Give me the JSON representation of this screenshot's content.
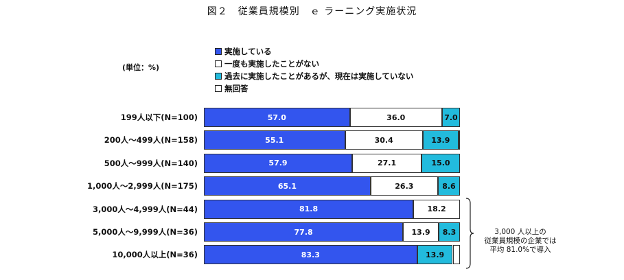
{
  "title": "図２　従業員規模別　ｅ ラーニング実施状況",
  "unit_label": "(単位：%)",
  "colors": {
    "implemented": "#3355ee",
    "once_implemented": "#ffffff",
    "past_implemented": "#22bbdd",
    "no_answer": "#ffffff"
  },
  "chart_data": {
    "type": "bar",
    "orientation": "horizontal",
    "stacked": true,
    "xlim": [
      0,
      100
    ],
    "grid": false,
    "legend_position": "top",
    "title": "図２　従業員規模別　ｅ ラーニング実施状況",
    "categories": [
      "199人以下(N=100)",
      "200人～499人(N=158)",
      "500人～999人(N=140)",
      "1,000人～2,999人(N=175)",
      "3,000人～4,999人(N=44)",
      "5,000人～9,999人(N=36)",
      "10,000人以上(N=36)"
    ],
    "series": [
      {
        "name": "実施している",
        "color": "#3355ee",
        "text_color": "#ffffff",
        "values": [
          57.0,
          55.1,
          57.9,
          65.1,
          81.8,
          77.8,
          83.3
        ]
      },
      {
        "name": "一度も実施したことがない",
        "color": "#ffffff",
        "text_color": "#111111",
        "values": [
          36.0,
          30.4,
          27.1,
          26.3,
          18.2,
          13.9,
          0
        ]
      },
      {
        "name": "過去に実施したことがあるが、現在は実施していない",
        "color": "#22bbdd",
        "text_color": "#111111",
        "values": [
          7.0,
          13.9,
          15.0,
          8.6,
          0,
          8.3,
          13.9
        ]
      },
      {
        "name": "無回答",
        "color": "#ffffff",
        "text_color": "#111111",
        "values": [
          0,
          0.6,
          0,
          0,
          0,
          0,
          2.8
        ]
      }
    ],
    "value_labels": [
      [
        "57.0",
        "36.0",
        "7.0",
        ""
      ],
      [
        "55.1",
        "30.4",
        "13.9",
        ""
      ],
      [
        "57.9",
        "27.1",
        "15.0",
        ""
      ],
      [
        "65.1",
        "26.3",
        "8.6",
        ""
      ],
      [
        "81.8",
        "18.2",
        "",
        ""
      ],
      [
        "77.8",
        "13.9",
        "8.3",
        ""
      ],
      [
        "83.3",
        "",
        "13.9",
        ""
      ]
    ]
  },
  "annotation": {
    "lines": [
      "3,000 人以上の",
      "従業員規模の企業では",
      "平均 81.0%で導入"
    ]
  }
}
